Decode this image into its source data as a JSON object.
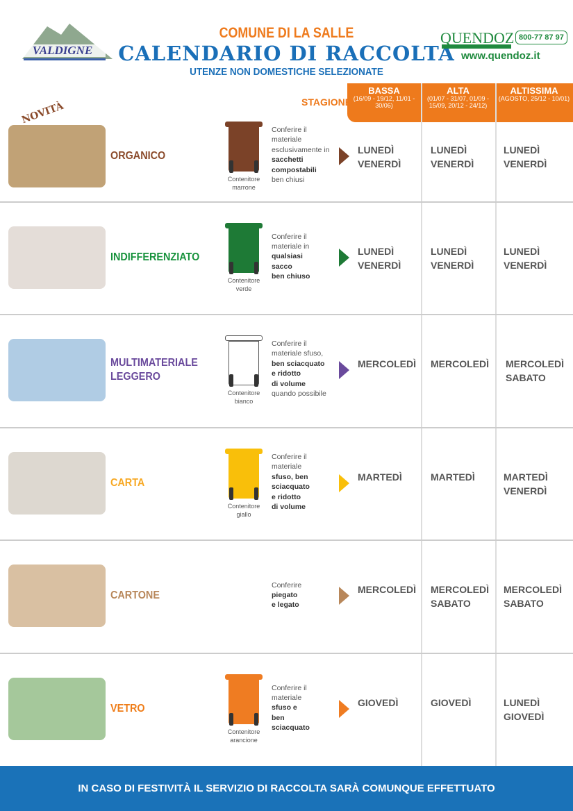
{
  "header": {
    "comune": "COMUNE DI LA SALLE",
    "title": "CALENDARIO DI RACCOLTA",
    "subtitle": "UTENZE NON DOMESTICHE SELEZIONATE",
    "logo_left": "VALDIGNE MONT-BLANC",
    "brand": "QUENDOZ",
    "brand_sub": "SERVICES ECOLOGIQUES",
    "phone": "800-77 87 97",
    "website": "www.quendoz.it"
  },
  "season_label": "STAGIONE",
  "seasons": [
    {
      "name": "BASSA",
      "dates": "(16/09 - 19/12, 11/01 - 30/06)"
    },
    {
      "name": "ALTA",
      "dates": "(01/07 - 31/07, 01/09 - 15/09, 20/12 - 24/12)"
    },
    {
      "name": "ALTISSIMA",
      "dates": "(AGOSTO, 25/12 - 10/01)"
    }
  ],
  "novita": "NOVITÀ",
  "colors": {
    "accent": "#ee7a1c",
    "blue": "#1a72b8",
    "green": "#1f8a3e"
  },
  "rows": [
    {
      "label": "ORGANICO",
      "color": "#8a4a2a",
      "bin_color": "#7b4228",
      "bin": "Contenitore marrone",
      "desc": [
        [
          "Conferire il",
          0
        ],
        [
          "materiale",
          0
        ],
        [
          "esclusivamente in",
          0
        ],
        [
          "sacchetti",
          1
        ],
        [
          "compostabili",
          1
        ],
        [
          "ben chiusi",
          0
        ]
      ],
      "days": [
        [
          "LUNEDÌ",
          "VENERDÌ"
        ],
        [
          "LUNEDÌ",
          "VENERDÌ"
        ],
        [
          "LUNEDÌ",
          "VENERDÌ"
        ]
      ]
    },
    {
      "label": "INDIFFERENZIATO",
      "color": "#17923c",
      "bin_color": "#1e7a36",
      "bin": "Contenitore verde",
      "desc": [
        [
          "Conferire il",
          0
        ],
        [
          "materiale in",
          0
        ],
        [
          "qualsiasi",
          1
        ],
        [
          "sacco",
          1
        ],
        [
          "ben chiuso",
          1
        ]
      ],
      "days": [
        [
          "LUNEDÌ",
          "VENERDÌ"
        ],
        [
          "LUNEDÌ",
          "VENERDÌ"
        ],
        [
          "LUNEDÌ",
          "VENERDÌ"
        ]
      ]
    },
    {
      "label": "MULTIMATERIALE LEGGERO",
      "color": "#6a4a9c",
      "bin_color": "#ffffff",
      "bin": "Contenitore bianco",
      "desc": [
        [
          "Conferire il",
          0
        ],
        [
          "materiale sfuso,",
          0
        ],
        [
          "ben sciacquato",
          1
        ],
        [
          "e ridotto",
          1
        ],
        [
          "di volume",
          1
        ],
        [
          "quando possibile",
          0
        ]
      ],
      "days": [
        [
          "MERCOLEDÌ"
        ],
        [
          "MERCOLEDÌ"
        ],
        [
          "MERCOLEDÌ",
          "SABATO"
        ]
      ]
    },
    {
      "label": "CARTA",
      "color": "#f7a823",
      "bin_color": "#f9bf0a",
      "bin": "Contenitore giallo",
      "desc": [
        [
          "Conferire il",
          0
        ],
        [
          "materiale",
          0
        ],
        [
          "sfuso, ben",
          1
        ],
        [
          "sciacquato",
          1
        ],
        [
          "e ridotto",
          1
        ],
        [
          "di volume",
          1
        ]
      ],
      "days": [
        [
          "MARTEDÌ"
        ],
        [
          "MARTEDÌ"
        ],
        [
          "MARTEDÌ",
          "VENERDÌ"
        ]
      ]
    },
    {
      "label": "CARTONE",
      "color": "#b8875a",
      "bin_color": "",
      "bin": "",
      "desc": [
        [
          "Conferire",
          0
        ],
        [
          "piegato",
          1
        ],
        [
          "e legato",
          1
        ]
      ],
      "days": [
        [
          "MERCOLEDÌ"
        ],
        [
          "MERCOLEDÌ",
          "SABATO"
        ],
        [
          "MERCOLEDÌ",
          "SABATO"
        ]
      ]
    },
    {
      "label": "VETRO",
      "color": "#ef7c17",
      "bin_color": "#ef7c22",
      "bin": "Contenitore arancione",
      "desc": [
        [
          "Conferire il",
          0
        ],
        [
          "materiale",
          0
        ],
        [
          "sfuso e",
          1
        ],
        [
          "ben",
          1
        ],
        [
          "sciacquato",
          1
        ]
      ],
      "days": [
        [
          "GIOVEDÌ"
        ],
        [
          "GIOVEDÌ"
        ],
        [
          "LUNEDÌ",
          "GIOVEDÌ"
        ]
      ]
    }
  ],
  "footer": "IN CASO DI FESTIVITÀ IL SERVIZIO DI RACCOLTA SARÀ COMUNQUE EFFETTUATO"
}
